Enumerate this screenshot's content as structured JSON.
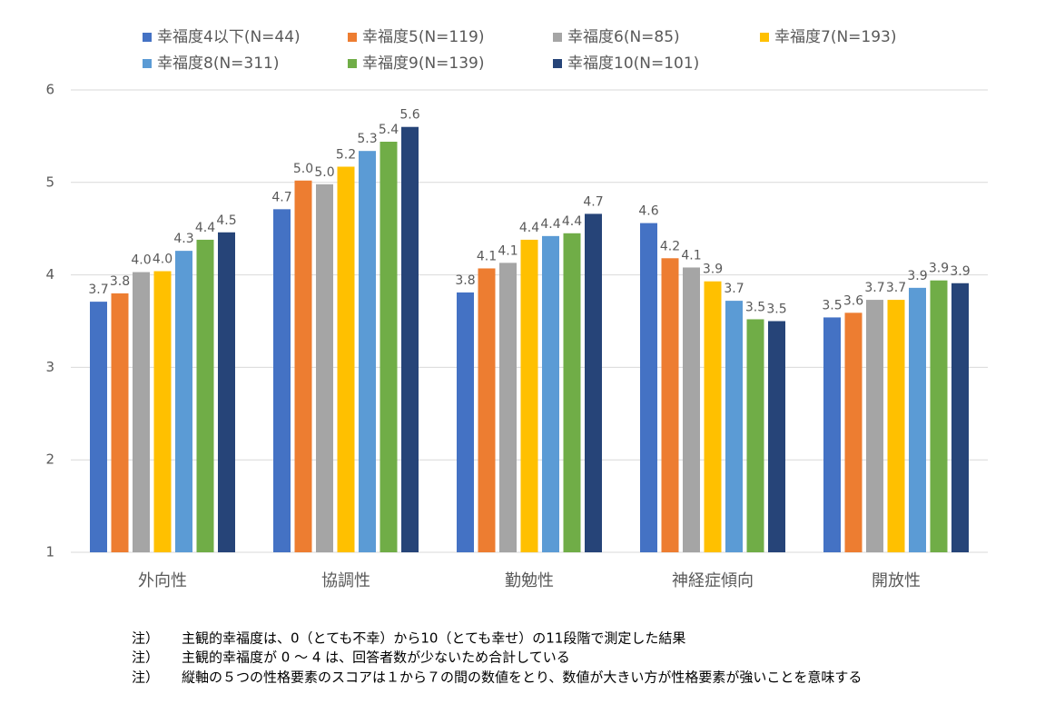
{
  "chart_data": {
    "type": "bar",
    "categories": [
      "外向性",
      "協調性",
      "勤勉性",
      "神経症傾向",
      "開放性"
    ],
    "series": [
      {
        "name": "幸福度4以下(N=44)",
        "color": "#4472c4",
        "values": [
          3.71,
          4.71,
          3.81,
          4.56,
          3.54
        ],
        "value_labels": [
          "3.7",
          "4.7",
          "3.8",
          "4.6",
          "3.5"
        ]
      },
      {
        "name": "幸福度5(N=119)",
        "color": "#ed7d31",
        "values": [
          3.8,
          5.02,
          4.07,
          4.18,
          3.59
        ],
        "value_labels": [
          "3.8",
          "5.0",
          "4.1",
          "4.2",
          "3.6"
        ]
      },
      {
        "name": "幸福度6(N=85)",
        "color": "#a5a5a5",
        "values": [
          4.03,
          4.98,
          4.13,
          4.08,
          3.73
        ],
        "value_labels": [
          "4.0",
          "5.0",
          "4.1",
          "4.1",
          "3.7"
        ]
      },
      {
        "name": "幸福度7(N=193)",
        "color": "#ffc000",
        "values": [
          4.04,
          5.17,
          4.38,
          3.93,
          3.73
        ],
        "value_labels": [
          "4.0",
          "5.2",
          "4.4",
          "3.9",
          "3.7"
        ]
      },
      {
        "name": "幸福度8(N=311)",
        "color": "#5b9bd5",
        "values": [
          4.26,
          5.34,
          4.42,
          3.72,
          3.86
        ],
        "value_labels": [
          "4.3",
          "5.3",
          "4.4",
          "3.7",
          "3.9"
        ]
      },
      {
        "name": "幸福度9(N=139)",
        "color": "#70ad47",
        "values": [
          4.38,
          5.44,
          4.45,
          3.52,
          3.94
        ],
        "value_labels": [
          "4.4",
          "5.4",
          "4.4",
          "3.5",
          "3.9"
        ]
      },
      {
        "name": "幸福度10(N=101)",
        "color": "#264478",
        "values": [
          4.46,
          5.6,
          4.66,
          3.5,
          3.91
        ],
        "value_labels": [
          "4.5",
          "5.6",
          "4.7",
          "3.5",
          "3.9"
        ]
      }
    ],
    "ylim": [
      1,
      6
    ],
    "yticks": [
      1,
      2,
      3,
      4,
      5,
      6
    ],
    "grid": true,
    "legend": "top"
  },
  "notes": [
    {
      "mark": "注）",
      "text": "主観的幸福度は、0（とても不幸）から10（とても幸せ）の11段階で測定した結果"
    },
    {
      "mark": "注）",
      "text": "主観的幸福度が 0 ～ 4 は、回答者数が少ないため合計している"
    },
    {
      "mark": "注）",
      "text": "縦軸の５つの性格要素のスコアは１から７の間の数値をとり、数値が大きい方が性格要素が強いことを意味する"
    }
  ]
}
